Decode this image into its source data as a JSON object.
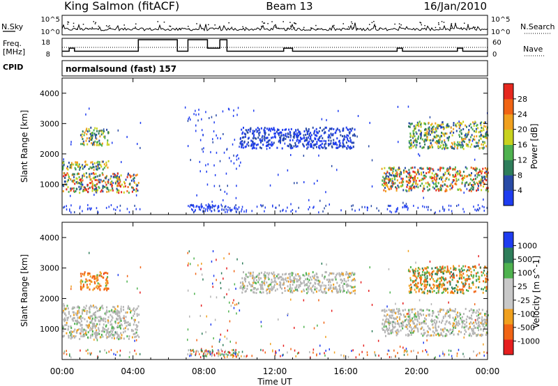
{
  "header": {
    "station": "King Salmon (fitACF)",
    "beam": "Beam 13",
    "date": "16/Jan/2010"
  },
  "noise_panel": {
    "left_label": "N.Sky",
    "right_label": "N.Search",
    "ticks_left": [
      "10^5",
      "10^0"
    ],
    "ticks_right": [
      "10^5",
      "10^0"
    ]
  },
  "freq_panel": {
    "left_label_1": "Freq.",
    "left_label_2": "[MHz]",
    "right_label": "Nave",
    "ticks_left": [
      "18",
      "8"
    ],
    "ticks_right": [
      "60",
      "0"
    ]
  },
  "cpid": {
    "label": "CPID",
    "value": "normalsound (fast) 157"
  },
  "colors": {
    "power_scale": [
      "#1e3cf0",
      "#284aa5",
      "#2e7d5a",
      "#4fb24f",
      "#c8d21e",
      "#f0a01e",
      "#f06414",
      "#e6281e"
    ],
    "velocity_scale": [
      "#e61e1e",
      "#f06414",
      "#f0a01e",
      "#c8c8c8",
      "#c8c8c8",
      "#4fb24f",
      "#2e7d5a",
      "#1e3cf0"
    ],
    "ground_scatter": "#b4b4b4"
  },
  "chart_data": {
    "type": "heatmap",
    "xlabel": "Time UT",
    "x_ticks": [
      "00:00",
      "04:00",
      "08:00",
      "12:00",
      "16:00",
      "20:00",
      "00:00"
    ],
    "x_range_hours": [
      0,
      24
    ],
    "panels": [
      {
        "name": "Power",
        "ylabel": "Slant Range [km]",
        "ylim": [
          0,
          4500
        ],
        "y_ticks": [
          "1000",
          "2000",
          "3000",
          "4000"
        ],
        "colorbar_label": "Power [dB]",
        "colorbar_ticks": [
          "4",
          "8",
          "12",
          "16",
          "20",
          "24",
          "28"
        ],
        "colorbar_range": [
          0,
          30
        ]
      },
      {
        "name": "Velocity",
        "ylabel": "Slant Range [km]",
        "ylim": [
          0,
          4500
        ],
        "y_ticks": [
          "1000",
          "2000",
          "3000",
          "4000"
        ],
        "colorbar_label": "Velocity [m s^-1]",
        "colorbar_ticks": [
          "1000",
          "500",
          "100",
          "25",
          "-25",
          "-100",
          "-500",
          "-1000"
        ]
      }
    ],
    "frequency_mhz": {
      "segments": [
        {
          "start_h": 0.0,
          "end_h": 0.4,
          "value": 10.5
        },
        {
          "start_h": 0.4,
          "end_h": 0.7,
          "value": 12.5
        },
        {
          "start_h": 0.7,
          "end_h": 4.3,
          "value": 10.5
        },
        {
          "start_h": 4.3,
          "end_h": 6.5,
          "value": 18.0
        },
        {
          "start_h": 6.5,
          "end_h": 7.1,
          "value": 10.5
        },
        {
          "start_h": 7.1,
          "end_h": 8.2,
          "value": 18.0
        },
        {
          "start_h": 8.2,
          "end_h": 8.9,
          "value": 12.5
        },
        {
          "start_h": 8.9,
          "end_h": 9.3,
          "value": 18.0
        },
        {
          "start_h": 9.3,
          "end_h": 12.5,
          "value": 10.5
        },
        {
          "start_h": 12.5,
          "end_h": 13.0,
          "value": 12.5
        },
        {
          "start_h": 13.0,
          "end_h": 18.9,
          "value": 10.5
        },
        {
          "start_h": 18.9,
          "end_h": 19.2,
          "value": 12.5
        },
        {
          "start_h": 19.2,
          "end_h": 22.3,
          "value": 10.5
        },
        {
          "start_h": 22.3,
          "end_h": 22.6,
          "value": 12.5
        },
        {
          "start_h": 22.6,
          "end_h": 24.0,
          "value": 10.5
        }
      ],
      "nave_approx": 30
    },
    "regions": [
      {
        "panel": "power",
        "t": [
          0.0,
          4.3
        ],
        "r": [
          750,
          1400
        ],
        "level": "high"
      },
      {
        "panel": "power",
        "t": [
          0.0,
          2.6
        ],
        "r": [
          1500,
          1800
        ],
        "level": "mid"
      },
      {
        "panel": "power",
        "t": [
          1.0,
          2.6
        ],
        "r": [
          2300,
          2900
        ],
        "level": "mid"
      },
      {
        "panel": "power",
        "t": [
          10.0,
          16.5
        ],
        "r": [
          2200,
          2900
        ],
        "level": "low"
      },
      {
        "panel": "power",
        "t": [
          18.0,
          24.0
        ],
        "r": [
          800,
          1600
        ],
        "level": "high"
      },
      {
        "panel": "power",
        "t": [
          19.5,
          24.0
        ],
        "r": [
          2200,
          3100
        ],
        "level": "mid"
      },
      {
        "panel": "velocity",
        "t": [
          0.0,
          4.3
        ],
        "r": [
          700,
          1800
        ],
        "level": "ground"
      },
      {
        "panel": "velocity",
        "t": [
          1.0,
          2.6
        ],
        "r": [
          2300,
          2900
        ],
        "level": "negative"
      },
      {
        "panel": "velocity",
        "t": [
          10.0,
          16.5
        ],
        "r": [
          2200,
          2900
        ],
        "level": "ground"
      },
      {
        "panel": "velocity",
        "t": [
          18.0,
          24.0
        ],
        "r": [
          800,
          1700
        ],
        "level": "ground"
      },
      {
        "panel": "velocity",
        "t": [
          19.5,
          24.0
        ],
        "r": [
          2200,
          3100
        ],
        "level": "mixed"
      }
    ]
  }
}
